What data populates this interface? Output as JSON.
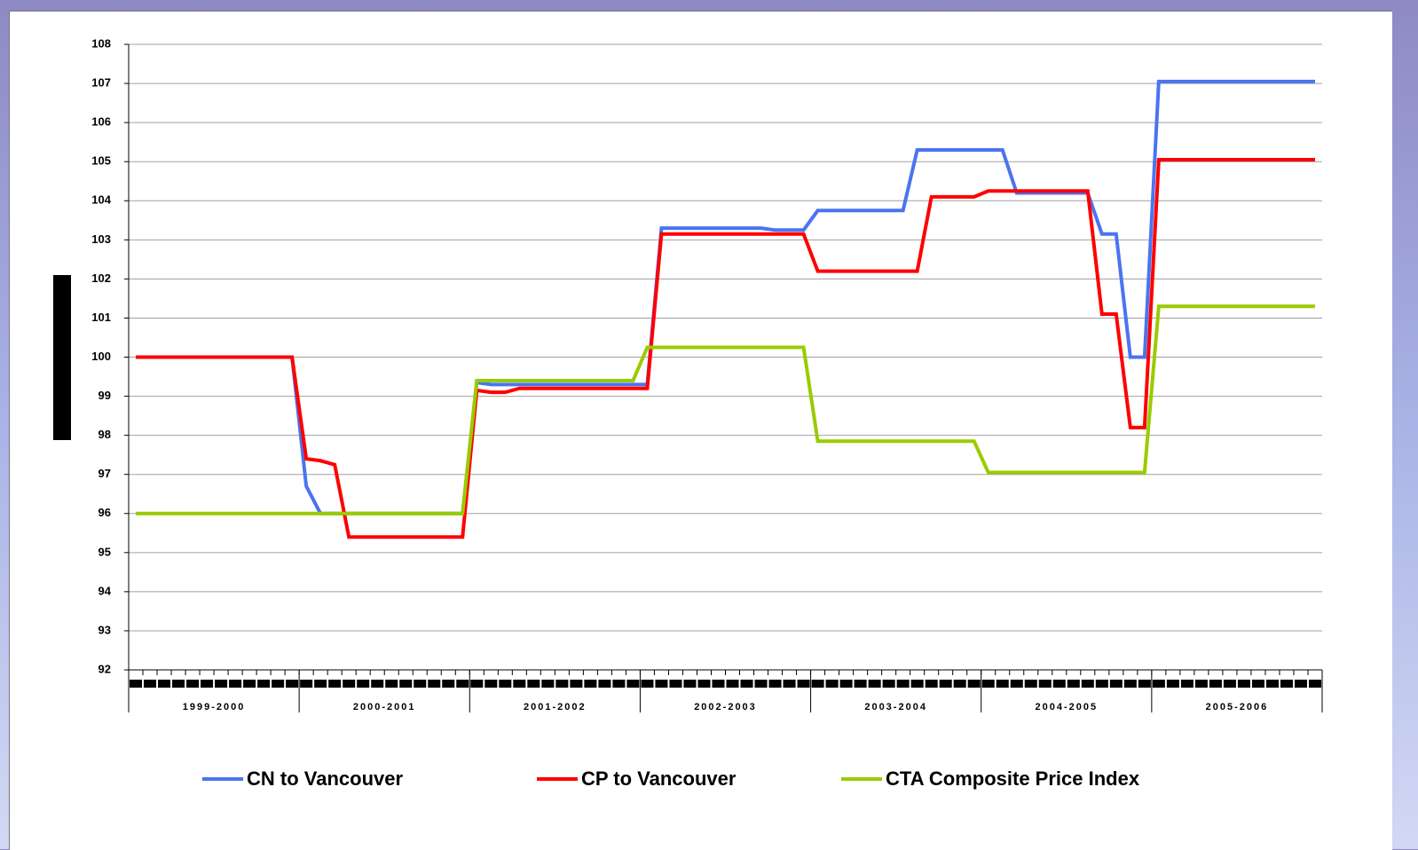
{
  "chart_data": {
    "type": "line",
    "categories": [
      null,
      null,
      null,
      null,
      null,
      null,
      null,
      null,
      null,
      null,
      null,
      null,
      null,
      null,
      null,
      null,
      null,
      null,
      null,
      null,
      null,
      null,
      null,
      null,
      null,
      null,
      null,
      null,
      null,
      null,
      null,
      null,
      null,
      null,
      null,
      null,
      null,
      null,
      null,
      null,
      null,
      null,
      null,
      null,
      null,
      null,
      null,
      null,
      null,
      null,
      null,
      null,
      null,
      null,
      null,
      null,
      null,
      null,
      null,
      null,
      null,
      null,
      null,
      null,
      null,
      null,
      null,
      null,
      null,
      null,
      null,
      null,
      null,
      null,
      null,
      null,
      null,
      null,
      null,
      null,
      null,
      null,
      null,
      null
    ],
    "x_groups": [
      "1999-2000",
      "2000-2001",
      "2001-2002",
      "2002-2003",
      "2003-2004",
      "2004-2005",
      "2005-2006"
    ],
    "series": [
      {
        "name": "CN to Vancouver",
        "color": "#4a74f0",
        "values": [
          100,
          100,
          100,
          100,
          100,
          100,
          100,
          100,
          100,
          100,
          100,
          100,
          96.7,
          96,
          96,
          96,
          96,
          96,
          96,
          96,
          96,
          96,
          96,
          96,
          99.35,
          99.3,
          99.3,
          99.3,
          99.3,
          99.3,
          99.3,
          99.3,
          99.3,
          99.3,
          99.3,
          99.3,
          99.3,
          103.3,
          103.3,
          103.3,
          103.3,
          103.3,
          103.3,
          103.3,
          103.3,
          103.25,
          103.25,
          103.25,
          103.75,
          103.75,
          103.75,
          103.75,
          103.75,
          103.75,
          103.75,
          105.3,
          105.3,
          105.3,
          105.3,
          105.3,
          105.3,
          105.3,
          104.2,
          104.2,
          104.2,
          104.2,
          104.2,
          104.2,
          103.15,
          103.15,
          100,
          100,
          107.05,
          107.05,
          107.05,
          107.05,
          107.05,
          107.05,
          107.05,
          107.05,
          107.05,
          107.05,
          107.05,
          107.05
        ]
      },
      {
        "name": "CP to Vancouver",
        "color": "#ff0000",
        "values": [
          100,
          100,
          100,
          100,
          100,
          100,
          100,
          100,
          100,
          100,
          100,
          100,
          97.4,
          97.35,
          97.25,
          95.4,
          95.4,
          95.4,
          95.4,
          95.4,
          95.4,
          95.4,
          95.4,
          95.4,
          99.15,
          99.1,
          99.1,
          99.2,
          99.2,
          99.2,
          99.2,
          99.2,
          99.2,
          99.2,
          99.2,
          99.2,
          99.2,
          103.15,
          103.15,
          103.15,
          103.15,
          103.15,
          103.15,
          103.15,
          103.15,
          103.15,
          103.15,
          103.15,
          102.2,
          102.2,
          102.2,
          102.2,
          102.2,
          102.2,
          102.2,
          102.2,
          104.1,
          104.1,
          104.1,
          104.1,
          104.25,
          104.25,
          104.25,
          104.25,
          104.25,
          104.25,
          104.25,
          104.25,
          101.1,
          101.1,
          98.2,
          98.2,
          105.05,
          105.05,
          105.05,
          105.05,
          105.05,
          105.05,
          105.05,
          105.05,
          105.05,
          105.05,
          105.05,
          105.05
        ]
      },
      {
        "name": "CTA Composite Price Index",
        "color": "#99cc00",
        "values": [
          96,
          96,
          96,
          96,
          96,
          96,
          96,
          96,
          96,
          96,
          96,
          96,
          96,
          96,
          96,
          96,
          96,
          96,
          96,
          96,
          96,
          96,
          96,
          96,
          99.4,
          99.4,
          99.4,
          99.4,
          99.4,
          99.4,
          99.4,
          99.4,
          99.4,
          99.4,
          99.4,
          99.4,
          100.25,
          100.25,
          100.25,
          100.25,
          100.25,
          100.25,
          100.25,
          100.25,
          100.25,
          100.25,
          100.25,
          100.25,
          97.85,
          97.85,
          97.85,
          97.85,
          97.85,
          97.85,
          97.85,
          97.85,
          97.85,
          97.85,
          97.85,
          97.85,
          97.05,
          97.05,
          97.05,
          97.05,
          97.05,
          97.05,
          97.05,
          97.05,
          97.05,
          97.05,
          97.05,
          97.05,
          101.3,
          101.3,
          101.3,
          101.3,
          101.3,
          101.3,
          101.3,
          101.3,
          101.3,
          101.3,
          101.3,
          101.3
        ]
      }
    ],
    "ylim": [
      92,
      108
    ],
    "yticks": [
      92,
      93,
      94,
      95,
      96,
      97,
      98,
      99,
      100,
      101,
      102,
      103,
      104,
      105,
      106,
      107,
      108
    ],
    "grid": true
  }
}
